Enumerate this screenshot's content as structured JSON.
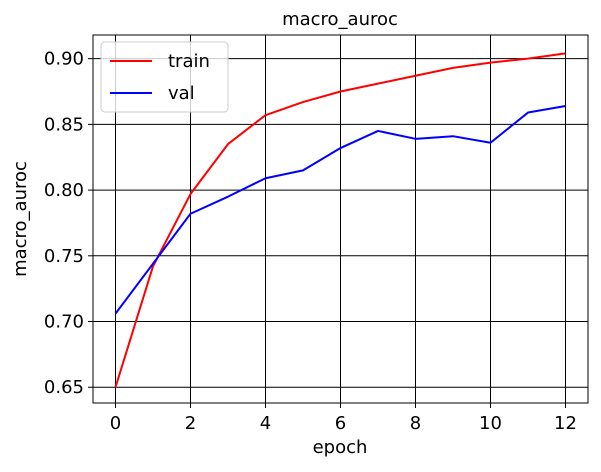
{
  "chart_data": {
    "type": "line",
    "title": "macro_auroc",
    "xlabel": "epoch",
    "ylabel": "macro_auroc",
    "x": [
      0,
      1,
      2,
      3,
      4,
      5,
      6,
      7,
      8,
      9,
      10,
      11,
      12
    ],
    "xticks": [
      "0",
      "2",
      "4",
      "6",
      "8",
      "10",
      "12"
    ],
    "yticks": [
      "0.65",
      "0.70",
      "0.75",
      "0.80",
      "0.85",
      "0.90"
    ],
    "xlim": [
      -0.6,
      12.6
    ],
    "ylim": [
      0.638,
      0.918
    ],
    "grid": true,
    "legend_position": "top-left",
    "series": [
      {
        "name": "train",
        "color": "#ff0000",
        "values": [
          0.65,
          0.742,
          0.797,
          0.835,
          0.857,
          0.867,
          0.875,
          0.881,
          0.887,
          0.893,
          0.897,
          0.9,
          0.904
        ]
      },
      {
        "name": "val",
        "color": "#0000ff",
        "values": [
          0.706,
          0.744,
          0.782,
          0.795,
          0.809,
          0.815,
          0.832,
          0.845,
          0.839,
          0.841,
          0.836,
          0.859,
          0.864
        ]
      }
    ]
  }
}
